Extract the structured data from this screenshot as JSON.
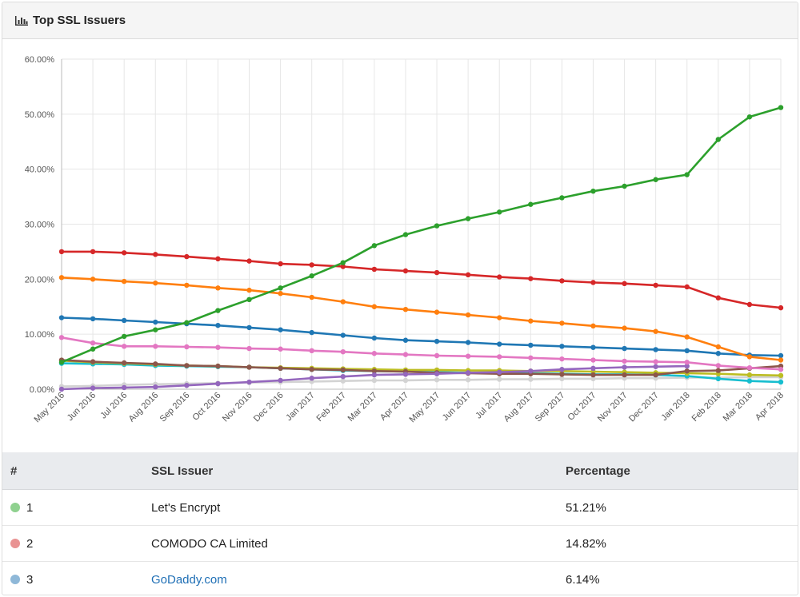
{
  "panel": {
    "title": "Top SSL Issuers",
    "icon": "bar-chart-icon"
  },
  "chart_data": {
    "type": "line",
    "x": [
      "May 2016",
      "Jun 2016",
      "Jul 2016",
      "Aug 2016",
      "Sep 2016",
      "Oct 2016",
      "Nov 2016",
      "Dec 2016",
      "Jan 2017",
      "Feb 2017",
      "Mar 2017",
      "Apr 2017",
      "May 2017",
      "Jun 2017",
      "Jul 2017",
      "Aug 2017",
      "Sep 2017",
      "Oct 2017",
      "Nov 2017",
      "Dec 2017",
      "Jan 2018",
      "Feb 2018",
      "Mar 2018",
      "Apr 2018"
    ],
    "ylim": [
      0,
      60
    ],
    "yticks": [
      0,
      10,
      20,
      30,
      40,
      50,
      60
    ],
    "ytick_labels": [
      "0.00%",
      "10.00%",
      "20.00%",
      "30.00%",
      "40.00%",
      "50.00%",
      "60.00%"
    ],
    "grid": true,
    "series": [
      {
        "color": "#d3d3d3",
        "values": [
          0.5,
          0.6,
          0.8,
          0.9,
          1.0,
          1.1,
          1.2,
          1.3,
          1.4,
          1.5,
          1.6,
          1.6,
          1.7,
          1.7,
          1.8,
          1.8,
          1.9,
          1.9,
          2.0,
          2.0,
          2.1,
          2.1,
          2.2,
          2.2
        ]
      },
      {
        "color": "#17becf",
        "values": [
          4.7,
          4.6,
          4.5,
          4.3,
          4.2,
          4.1,
          4.0,
          3.8,
          3.6,
          3.4,
          3.3,
          3.2,
          3.1,
          3.0,
          2.9,
          2.9,
          2.8,
          2.7,
          2.7,
          2.6,
          2.4,
          1.9,
          1.5,
          1.3
        ]
      },
      {
        "color": "#bcbd22",
        "values": [
          5.2,
          4.9,
          4.7,
          4.5,
          4.3,
          4.2,
          4.0,
          3.9,
          3.8,
          3.7,
          3.6,
          3.5,
          3.5,
          3.4,
          3.4,
          3.3,
          3.3,
          3.2,
          3.1,
          3.0,
          2.9,
          2.8,
          2.6,
          2.5
        ]
      },
      {
        "color": "#8c564b",
        "values": [
          5.3,
          5.0,
          4.8,
          4.6,
          4.3,
          4.2,
          4.0,
          3.8,
          3.6,
          3.5,
          3.3,
          3.2,
          3.0,
          2.9,
          2.8,
          2.8,
          2.7,
          2.6,
          2.6,
          2.6,
          3.3,
          3.4,
          3.8,
          4.2
        ]
      },
      {
        "color": "#9467bd",
        "values": [
          0.0,
          0.2,
          0.3,
          0.4,
          0.7,
          1.0,
          1.3,
          1.6,
          2.0,
          2.3,
          2.6,
          2.7,
          2.8,
          3.0,
          3.1,
          3.3,
          3.6,
          3.8,
          4.0,
          4.1,
          4.2,
          null,
          null,
          null
        ]
      },
      {
        "color": "#e377c2",
        "values": [
          9.4,
          8.4,
          7.8,
          7.8,
          7.7,
          7.6,
          7.4,
          7.3,
          7.0,
          6.8,
          6.5,
          6.3,
          6.1,
          6.0,
          5.9,
          5.7,
          5.5,
          5.3,
          5.1,
          5.0,
          4.9,
          4.3,
          3.9,
          3.6
        ]
      },
      {
        "color": "#1f77b4",
        "values": [
          13.0,
          12.8,
          12.5,
          12.2,
          11.9,
          11.6,
          11.2,
          10.8,
          10.3,
          9.8,
          9.3,
          8.9,
          8.7,
          8.5,
          8.2,
          8.0,
          7.8,
          7.6,
          7.4,
          7.2,
          7.0,
          6.5,
          6.2,
          6.1
        ]
      },
      {
        "color": "#ff7f0e",
        "values": [
          20.3,
          20.0,
          19.6,
          19.3,
          18.9,
          18.4,
          18.0,
          17.4,
          16.7,
          15.9,
          15.0,
          14.5,
          14.0,
          13.5,
          13.0,
          12.4,
          12.0,
          11.5,
          11.1,
          10.5,
          9.5,
          7.7,
          5.9,
          5.3
        ]
      },
      {
        "color": "#d62728",
        "values": [
          25.0,
          25.0,
          24.8,
          24.5,
          24.1,
          23.7,
          23.3,
          22.8,
          22.6,
          22.3,
          21.8,
          21.5,
          21.2,
          20.8,
          20.4,
          20.1,
          19.7,
          19.4,
          19.2,
          18.9,
          18.6,
          16.6,
          15.4,
          14.8
        ]
      },
      {
        "color": "#2ca02c",
        "values": [
          4.9,
          7.3,
          9.6,
          10.8,
          12.1,
          14.3,
          16.3,
          18.4,
          20.6,
          23.0,
          26.1,
          28.1,
          29.7,
          31.0,
          32.2,
          33.6,
          34.8,
          36.0,
          36.9,
          38.1,
          39.0,
          45.4,
          49.5,
          51.2
        ]
      }
    ]
  },
  "table": {
    "headers": [
      "#",
      "SSL Issuer",
      "Percentage"
    ],
    "rows": [
      {
        "rank": "1",
        "issuer": "Let's Encrypt",
        "percentage": "51.21%",
        "color": "#8fd18f"
      },
      {
        "rank": "2",
        "issuer": "COMODO CA Limited",
        "percentage": "14.82%",
        "color": "#e99393"
      },
      {
        "rank": "3",
        "issuer": "GoDaddy.com",
        "percentage": "6.14%",
        "color": "#8fb8d8"
      }
    ]
  }
}
